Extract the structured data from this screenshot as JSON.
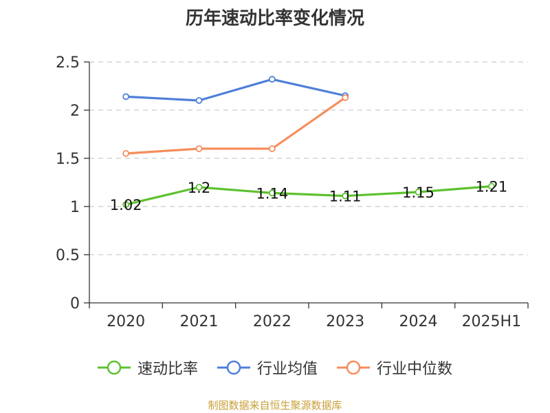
{
  "title": "历年速动比率变化情况",
  "source": "制图数据来自恒生聚源数据库",
  "chart_data": {
    "type": "line",
    "title": "历年速动比率变化情况",
    "categories": [
      "2020",
      "2021",
      "2022",
      "2023",
      "2024",
      "2025H1"
    ],
    "y_ticks": [
      "0",
      "0.5",
      "1",
      "1.5",
      "2",
      "2.5"
    ],
    "ylim": [
      0,
      2.5
    ],
    "grid": "horizontal-dashed",
    "legend_position": "bottom",
    "series": [
      {
        "name": "速动比率",
        "color": "#5dc12f",
        "values": [
          1.02,
          1.2,
          1.14,
          1.11,
          1.15,
          1.21
        ],
        "labels": [
          "1.02",
          "1.2",
          "1.14",
          "1.11",
          "1.15",
          "1.21"
        ]
      },
      {
        "name": "行业均值",
        "color": "#4e7fd9",
        "values": [
          2.14,
          2.1,
          2.32,
          2.15,
          null,
          null
        ]
      },
      {
        "name": "行业中位数",
        "color": "#f58d5c",
        "values": [
          1.55,
          1.6,
          1.6,
          2.13,
          null,
          null
        ]
      }
    ]
  }
}
